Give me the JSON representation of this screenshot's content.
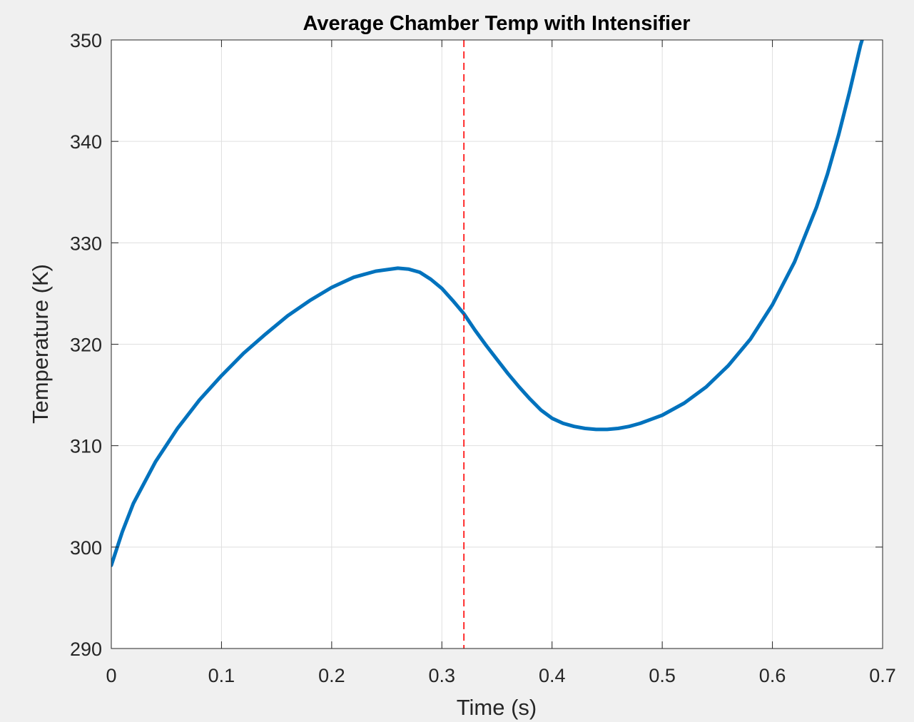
{
  "chart_data": {
    "type": "line",
    "title": "Average Chamber Temp with Intensifier",
    "xlabel": "Time (s)",
    "ylabel": "Temperature (K)",
    "xlim": [
      0,
      0.7
    ],
    "ylim": [
      290,
      350
    ],
    "xticks": [
      0,
      0.1,
      0.2,
      0.3,
      0.4,
      0.5,
      0.6,
      0.7
    ],
    "xtick_labels": [
      "0",
      "0.1",
      "0.2",
      "0.3",
      "0.4",
      "0.5",
      "0.6",
      "0.7"
    ],
    "yticks": [
      290,
      300,
      310,
      320,
      330,
      340,
      350
    ],
    "ytick_labels": [
      "290",
      "300",
      "310",
      "320",
      "330",
      "340",
      "350"
    ],
    "grid": true,
    "series": [
      {
        "color": "#0072bd",
        "style": "solid",
        "x": [
          0,
          0.01,
          0.02,
          0.04,
          0.06,
          0.08,
          0.1,
          0.12,
          0.14,
          0.16,
          0.18,
          0.2,
          0.22,
          0.24,
          0.26,
          0.27,
          0.28,
          0.29,
          0.3,
          0.31,
          0.32,
          0.33,
          0.34,
          0.35,
          0.36,
          0.37,
          0.38,
          0.39,
          0.4,
          0.41,
          0.42,
          0.43,
          0.44,
          0.45,
          0.46,
          0.47,
          0.48,
          0.49,
          0.5,
          0.52,
          0.54,
          0.56,
          0.58,
          0.6,
          0.62,
          0.64,
          0.65,
          0.66,
          0.67,
          0.68,
          0.69
        ],
        "y": [
          298.2,
          301.5,
          304.3,
          308.4,
          311.7,
          314.5,
          316.9,
          319.1,
          321.0,
          322.8,
          324.3,
          325.6,
          326.6,
          327.2,
          327.5,
          327.4,
          327.1,
          326.4,
          325.5,
          324.3,
          323.0,
          321.4,
          319.9,
          318.5,
          317.1,
          315.8,
          314.6,
          313.5,
          312.7,
          312.2,
          311.9,
          311.7,
          311.6,
          311.6,
          311.7,
          311.9,
          312.2,
          312.6,
          313.0,
          314.2,
          315.8,
          317.9,
          320.5,
          323.9,
          328.1,
          333.5,
          336.8,
          340.6,
          344.9,
          349.5,
          353.0
        ]
      }
    ],
    "vline": {
      "x": 0.32,
      "color": "#ff0000",
      "style": "dashed"
    }
  }
}
